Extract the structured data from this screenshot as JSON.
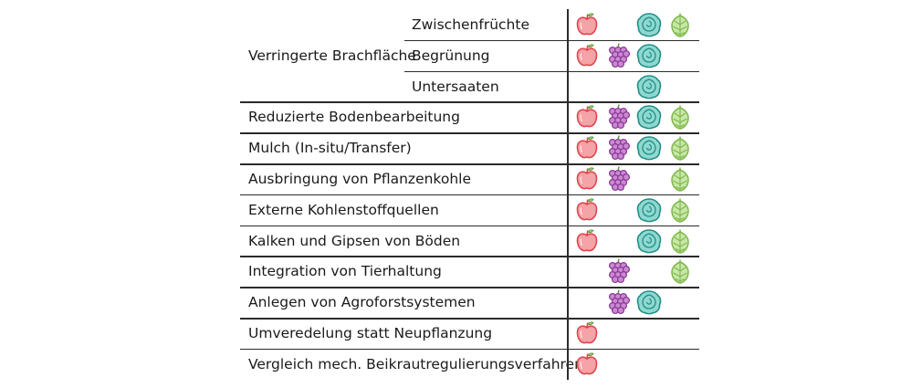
{
  "group": {
    "label": "Verringerte Brachfläche",
    "subrows": [
      {
        "label": "Zwischenfrüchte",
        "crops": [
          "apple",
          "cabbage",
          "hop"
        ]
      },
      {
        "label": "Begrünung",
        "crops": [
          "apple",
          "grape",
          "cabbage"
        ]
      },
      {
        "label": "Untersaaten",
        "crops": [
          "cabbage"
        ]
      }
    ]
  },
  "rows": [
    {
      "label": "Reduzierte Bodenbearbeitung",
      "crops": [
        "apple",
        "grape",
        "cabbage",
        "hop"
      ]
    },
    {
      "label": "Mulch (In-situ/Transfer)",
      "crops": [
        "apple",
        "grape",
        "cabbage",
        "hop"
      ]
    },
    {
      "label": "Ausbringung von Pflanzenkohle",
      "crops": [
        "apple",
        "grape",
        "hop"
      ]
    },
    {
      "label": "Externe Kohlenstoffquellen",
      "crops": [
        "apple",
        "cabbage",
        "hop"
      ]
    },
    {
      "label": "Kalken und Gipsen von Böden",
      "crops": [
        "apple",
        "cabbage",
        "hop"
      ]
    },
    {
      "label": "Integration von Tierhaltung",
      "crops": [
        "grape",
        "hop"
      ]
    },
    {
      "label": "Anlegen von Agroforstsystemen",
      "crops": [
        "grape",
        "cabbage"
      ]
    },
    {
      "label": "Umveredelung statt Neupflanzung",
      "crops": [
        "apple"
      ]
    },
    {
      "label": "Vergleich mech. Beikrautregulierungsverfahren",
      "crops": [
        "apple"
      ]
    }
  ],
  "icons": {
    "apple": {
      "name": "apple-icon",
      "fill": "#f4a3a6",
      "stroke": "#e0454f"
    },
    "grape": {
      "name": "grape-icon",
      "fill": "#c98ad0",
      "stroke": "#8e3a99"
    },
    "cabbage": {
      "name": "cabbage-icon",
      "fill": "#8fd8d0",
      "stroke": "#1f8f86"
    },
    "hop": {
      "name": "hop-icon",
      "fill": "#c9e6a8",
      "stroke": "#7cb84a"
    }
  }
}
